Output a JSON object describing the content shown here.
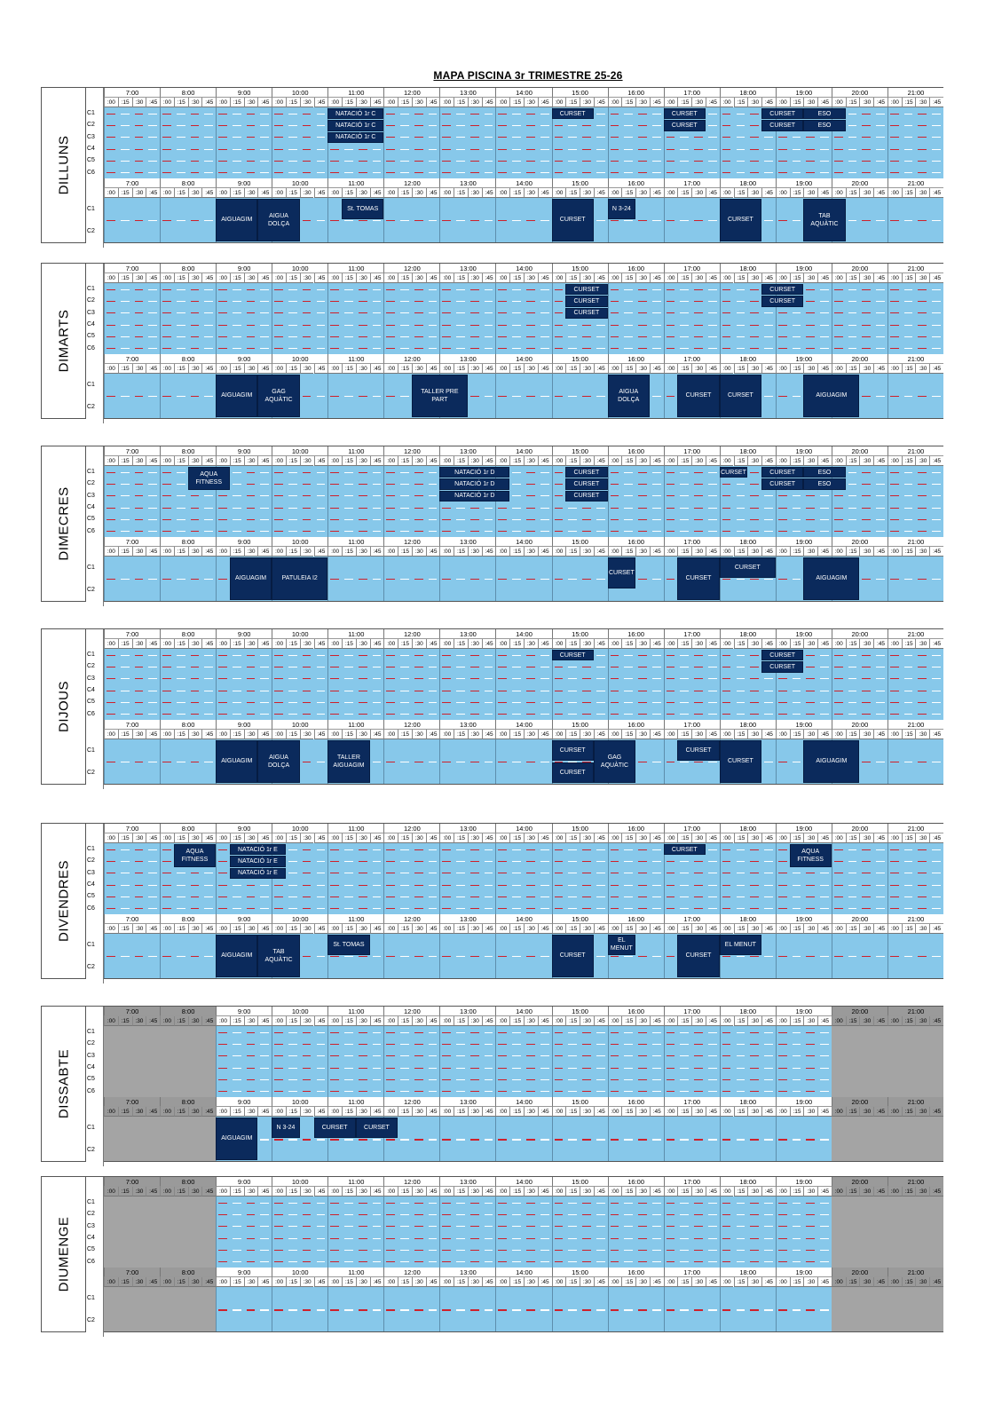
{
  "title": "MAPA PISCINA 3r TRIMESTRE 25-26",
  "hours": [
    "7:00",
    "8:00",
    "9:00",
    "10:00",
    "11:00",
    "12:00",
    "13:00",
    "14:00",
    "15:00",
    "16:00",
    "17:00",
    "18:00",
    "19:00",
    "20:00",
    "21:00"
  ],
  "quarters": [
    ":00",
    ":15",
    ":30",
    ":45"
  ],
  "lanes_main": [
    "C1",
    "C2",
    "C3",
    "C4",
    "C5",
    "C6"
  ],
  "lanes_small": [
    "C1",
    "C2"
  ],
  "colors": {
    "water": "#87c8ea",
    "block": "#0b2a5c",
    "closed": "#a4a4a4",
    "lane_rope": "#d0202a"
  },
  "days": [
    {
      "name": "DILLUNS",
      "main_blocks": [
        {
          "text": "NATACIÓ 1r C",
          "start": 11,
          "end": 12,
          "lanes": [
            1,
            1
          ]
        },
        {
          "text": "NATACIÓ 1r C",
          "start": 11,
          "end": 12,
          "lanes": [
            2,
            2
          ]
        },
        {
          "text": "NATACIÓ 1r C",
          "start": 11,
          "end": 12,
          "lanes": [
            3,
            3
          ]
        },
        {
          "text": "CURSET",
          "start": 15,
          "end": 15.75,
          "lanes": [
            1,
            1
          ]
        },
        {
          "text": "CURSET",
          "start": 17,
          "end": 17.75,
          "lanes": [
            1,
            1
          ]
        },
        {
          "text": "CURSET",
          "start": 17,
          "end": 17.75,
          "lanes": [
            2,
            2
          ]
        },
        {
          "text": "CURSET",
          "start": 18.75,
          "end": 19.5,
          "lanes": [
            1,
            1
          ]
        },
        {
          "text": "CURSET",
          "start": 18.75,
          "end": 19.5,
          "lanes": [
            2,
            2
          ]
        },
        {
          "text": "ESO",
          "start": 19.5,
          "end": 20.25,
          "lanes": [
            1,
            1
          ]
        },
        {
          "text": "ESO",
          "start": 19.5,
          "end": 20.25,
          "lanes": [
            2,
            2
          ]
        }
      ],
      "small_blocks": [
        {
          "text": "AIGUAGIM",
          "start": 9,
          "end": 9.75,
          "lanes": [
            1,
            2
          ]
        },
        {
          "text": "AIGUA\nDOLÇA",
          "start": 9.75,
          "end": 10.5,
          "lanes": [
            1,
            2
          ]
        },
        {
          "text": "St. TOMAS",
          "start": 11.25,
          "end": 12,
          "lanes": [
            1,
            1
          ]
        },
        {
          "text": "CURSET",
          "start": 15,
          "end": 15.75,
          "lanes": [
            1,
            2
          ]
        },
        {
          "text": "N 3-24",
          "start": 16,
          "end": 16.5,
          "lanes": [
            1,
            1
          ]
        },
        {
          "text": "CURSET",
          "start": 18,
          "end": 18.75,
          "lanes": [
            1,
            2
          ]
        },
        {
          "text": "TAB\nAQUÀTIC",
          "start": 19.5,
          "end": 20.25,
          "lanes": [
            1,
            2
          ]
        }
      ]
    },
    {
      "name": "DIMARTS",
      "main_blocks": [
        {
          "text": "CURSET",
          "start": 15.25,
          "end": 16,
          "lanes": [
            1,
            1
          ]
        },
        {
          "text": "CURSET",
          "start": 15.25,
          "end": 16,
          "lanes": [
            2,
            2
          ]
        },
        {
          "text": "CURSET",
          "start": 15.25,
          "end": 16,
          "lanes": [
            3,
            3
          ]
        },
        {
          "text": "CURSET",
          "start": 18.75,
          "end": 19.5,
          "lanes": [
            1,
            1
          ]
        },
        {
          "text": "CURSET",
          "start": 18.75,
          "end": 19.5,
          "lanes": [
            2,
            2
          ]
        }
      ],
      "small_blocks": [
        {
          "text": "AIGUAGIM",
          "start": 9,
          "end": 9.75,
          "lanes": [
            1,
            2
          ]
        },
        {
          "text": "GAG\nAQUÀTIC",
          "start": 9.75,
          "end": 10.5,
          "lanes": [
            1,
            2
          ]
        },
        {
          "text": "TALLER PRE PART",
          "start": 12.5,
          "end": 13.5,
          "lanes": [
            1,
            2
          ]
        },
        {
          "text": "AIGUA\nDOLÇA",
          "start": 16,
          "end": 16.75,
          "lanes": [
            1,
            2
          ]
        },
        {
          "text": "CURSET",
          "start": 17.25,
          "end": 18,
          "lanes": [
            1,
            2
          ]
        },
        {
          "text": "CURSET",
          "start": 18,
          "end": 18.75,
          "lanes": [
            1,
            2
          ]
        },
        {
          "text": "AIGUAGIM",
          "start": 19.5,
          "end": 20.5,
          "lanes": [
            1,
            2
          ]
        }
      ]
    },
    {
      "name": "DIMECRES",
      "main_blocks": [
        {
          "text": "AQUA\nFITNESS",
          "start": 8.5,
          "end": 9.25,
          "lanes": [
            1,
            2
          ]
        },
        {
          "text": "NATACIÓ 1r D",
          "start": 13,
          "end": 14.25,
          "lanes": [
            1,
            1
          ]
        },
        {
          "text": "NATACIÓ 1r D",
          "start": 13,
          "end": 14.25,
          "lanes": [
            2,
            2
          ]
        },
        {
          "text": "NATACIÓ 1r D",
          "start": 13,
          "end": 14.25,
          "lanes": [
            3,
            3
          ]
        },
        {
          "text": "CURSET",
          "start": 15.25,
          "end": 16,
          "lanes": [
            1,
            1
          ]
        },
        {
          "text": "CURSET",
          "start": 15.25,
          "end": 16,
          "lanes": [
            2,
            2
          ]
        },
        {
          "text": "CURSET",
          "start": 15.25,
          "end": 16,
          "lanes": [
            3,
            3
          ]
        },
        {
          "text": "CURSET",
          "start": 18,
          "end": 18.5,
          "lanes": [
            1,
            1
          ]
        },
        {
          "text": "CURSET",
          "start": 18.75,
          "end": 19.5,
          "lanes": [
            1,
            1
          ]
        },
        {
          "text": "CURSET",
          "start": 18.75,
          "end": 19.5,
          "lanes": [
            2,
            2
          ]
        },
        {
          "text": "ESO",
          "start": 19.5,
          "end": 20.25,
          "lanes": [
            1,
            1
          ]
        },
        {
          "text": "ESO",
          "start": 19.5,
          "end": 20.25,
          "lanes": [
            2,
            2
          ]
        }
      ],
      "small_blocks": [
        {
          "text": "AIGUAGIM",
          "start": 9.25,
          "end": 10,
          "lanes": [
            1,
            2
          ]
        },
        {
          "text": "PATULEIA I2",
          "start": 10,
          "end": 11,
          "lanes": [
            1,
            2
          ]
        },
        {
          "text": "CURSET",
          "start": 16,
          "end": 16.5,
          "lanes": [
            1,
            1.5
          ]
        },
        {
          "text": "CURSET",
          "start": 17.25,
          "end": 18,
          "lanes": [
            1,
            2
          ]
        },
        {
          "text": "CURSET",
          "start": 18,
          "end": 19,
          "lanes": [
            1,
            1
          ]
        },
        {
          "text": "AIGUAGIM",
          "start": 19.5,
          "end": 20.5,
          "lanes": [
            1,
            2
          ]
        }
      ]
    },
    {
      "name": "DIJOUS",
      "main_blocks": [
        {
          "text": "CURSET",
          "start": 15,
          "end": 15.75,
          "lanes": [
            1,
            1
          ]
        },
        {
          "text": "CURSET",
          "start": 18.75,
          "end": 19.5,
          "lanes": [
            1,
            1
          ]
        },
        {
          "text": "CURSET",
          "start": 18.75,
          "end": 19.5,
          "lanes": [
            2,
            2
          ]
        }
      ],
      "small_blocks": [
        {
          "text": "AIGUAGIM",
          "start": 9,
          "end": 9.75,
          "lanes": [
            1,
            2
          ]
        },
        {
          "text": "AIGUA\nDOLÇA",
          "start": 9.75,
          "end": 10.5,
          "lanes": [
            1,
            2
          ]
        },
        {
          "text": "TALLER\nAIGUAGIM",
          "start": 11,
          "end": 11.75,
          "lanes": [
            1,
            2
          ]
        },
        {
          "text": "CURSET",
          "start": 15,
          "end": 15.75,
          "lanes": [
            1,
            1
          ]
        },
        {
          "text": "CURSET",
          "start": 15,
          "end": 15.75,
          "lanes": [
            2,
            2
          ]
        },
        {
          "text": "GAG\nAQUÀTIC",
          "start": 15.75,
          "end": 16.5,
          "lanes": [
            1,
            2
          ]
        },
        {
          "text": "CURSET",
          "start": 17.25,
          "end": 18,
          "lanes": [
            1,
            1
          ]
        },
        {
          "text": "CURSET",
          "start": 18,
          "end": 18.75,
          "lanes": [
            1,
            2
          ]
        },
        {
          "text": "AIGUAGIM",
          "start": 19.5,
          "end": 20.5,
          "lanes": [
            1,
            2
          ]
        }
      ]
    },
    {
      "name": "DIVENDRES",
      "main_blocks": [
        {
          "text": "AQUA\nFITNESS",
          "start": 8.25,
          "end": 9,
          "lanes": [
            1,
            2
          ]
        },
        {
          "text": "NATACIÓ 1r E",
          "start": 9.25,
          "end": 10.25,
          "lanes": [
            1,
            1
          ]
        },
        {
          "text": "NATACIÓ 1r E",
          "start": 9.25,
          "end": 10.25,
          "lanes": [
            2,
            2
          ]
        },
        {
          "text": "NATACIÓ 1r E",
          "start": 9.25,
          "end": 10.25,
          "lanes": [
            3,
            3
          ]
        },
        {
          "text": "CURSET",
          "start": 17,
          "end": 17.75,
          "lanes": [
            1,
            1
          ]
        },
        {
          "text": "AQUA\nFITNESS",
          "start": 19.25,
          "end": 20,
          "lanes": [
            1,
            2
          ]
        }
      ],
      "small_blocks": [
        {
          "text": "AIGUAGIM",
          "start": 9,
          "end": 9.75,
          "lanes": [
            1,
            2
          ]
        },
        {
          "text": "TAB\nAQUÀTIC",
          "start": 9.75,
          "end": 10.5,
          "lanes": [
            1,
            2
          ]
        },
        {
          "text": "St. TOMAS",
          "start": 11,
          "end": 11.75,
          "lanes": [
            1,
            1
          ]
        },
        {
          "text": "CURSET",
          "start": 15,
          "end": 15.75,
          "lanes": [
            1,
            2
          ]
        },
        {
          "text": "EL MENUT",
          "start": 16,
          "end": 16.5,
          "lanes": [
            1,
            1
          ]
        },
        {
          "text": "CURSET",
          "start": 17.25,
          "end": 18,
          "lanes": [
            1,
            2
          ]
        },
        {
          "text": "EL MENUT",
          "start": 18,
          "end": 18.75,
          "lanes": [
            1,
            1
          ]
        }
      ]
    },
    {
      "name": "DISSABTE",
      "closed_before": 9,
      "closed_after": 20,
      "main_blocks": [],
      "small_blocks": [
        {
          "text": "AIGUAGIM",
          "start": 9,
          "end": 9.75,
          "lanes": [
            1,
            2
          ]
        },
        {
          "text": "N 3-24",
          "start": 10,
          "end": 10.5,
          "lanes": [
            1,
            1
          ]
        },
        {
          "text": "CURSET",
          "start": 10.75,
          "end": 11.5,
          "lanes": [
            1,
            1
          ]
        },
        {
          "text": "CURSET",
          "start": 11.5,
          "end": 12.25,
          "lanes": [
            1,
            1
          ]
        }
      ]
    },
    {
      "name": "DIUMENGE",
      "closed_before": 9,
      "closed_after": 20,
      "main_blocks": [],
      "small_blocks": []
    }
  ]
}
